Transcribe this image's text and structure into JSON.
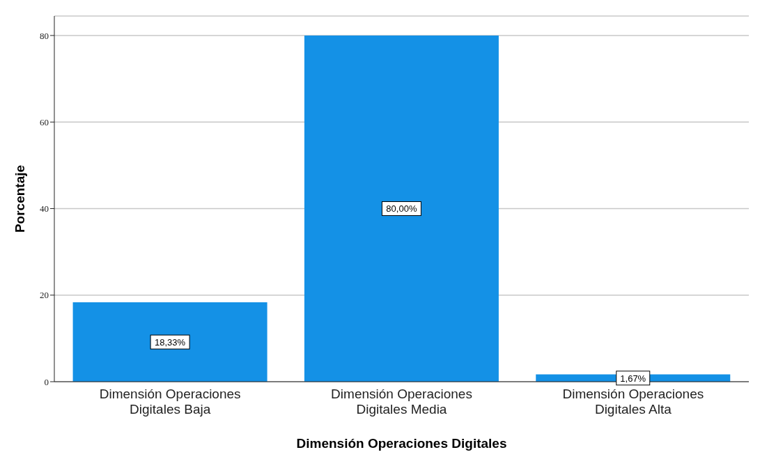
{
  "chart_data": {
    "type": "bar",
    "xlabel": "Dimensión Operaciones Digitales",
    "ylabel": "Porcentaje",
    "categories": [
      "Dimensión Operaciones Digitales Baja",
      "Dimensión Operaciones Digitales Media",
      "Dimensión Operaciones Digitales Alta"
    ],
    "values": [
      18.33,
      80,
      1.67
    ],
    "color": "#1491e6",
    "value_labels": [
      "18,33%",
      "80,00%",
      "1,67%"
    ],
    "ylim": [
      0,
      84.5
    ],
    "yticks": [
      0,
      20,
      40,
      60,
      80
    ],
    "grid": "y"
  }
}
